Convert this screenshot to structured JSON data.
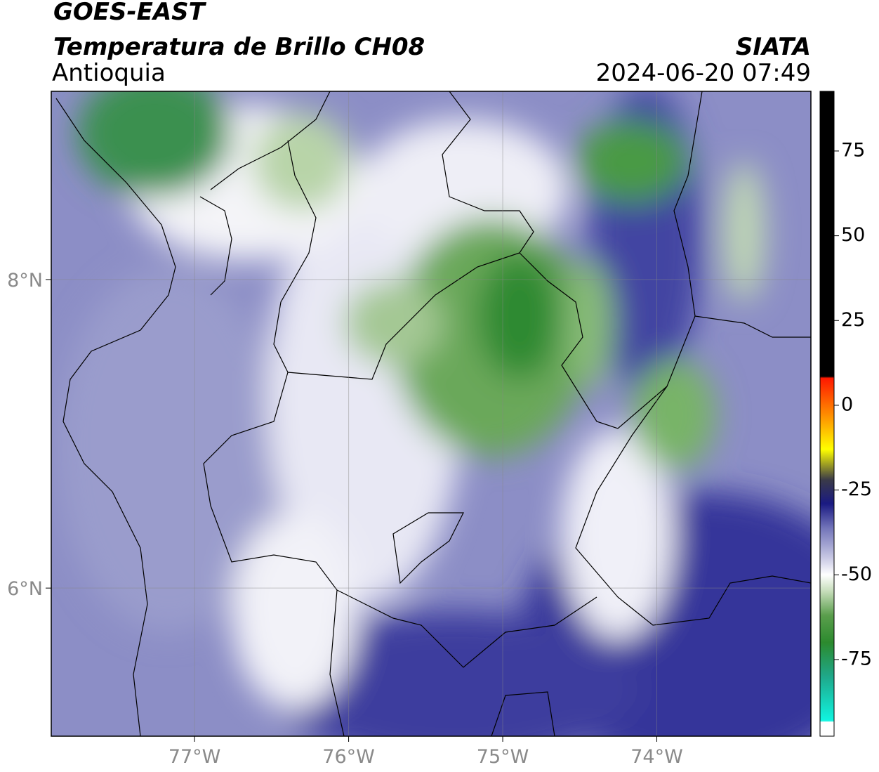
{
  "header": {
    "title": "GOES-EAST",
    "subtitle": "Temperatura de Brillo CH08",
    "region": "Antioquia",
    "source": "SIATA",
    "datetime": "2024-06-20 07:49"
  },
  "map": {
    "xlim": [
      -77.93,
      -73.0
    ],
    "ylim": [
      5.04,
      9.22
    ],
    "xticks": [
      {
        "value": -77,
        "label": "77°W"
      },
      {
        "value": -76,
        "label": "76°W"
      },
      {
        "value": -75,
        "label": "75°W"
      },
      {
        "value": -74,
        "label": "74°W"
      }
    ],
    "yticks": [
      {
        "value": 6,
        "label": "6°N"
      },
      {
        "value": 8,
        "label": "8°N"
      }
    ],
    "grid": true
  },
  "colorbar": {
    "lim": [
      -97.6,
      92.6
    ],
    "ticks": [
      -75,
      -50,
      -25,
      0,
      25,
      50,
      75
    ],
    "colormap": [
      {
        "value": -97.6,
        "color": "#ffffff"
      },
      {
        "value": -93.5,
        "color": "#ffffff"
      },
      {
        "value": -93,
        "color": "#10f4e0"
      },
      {
        "value": -80,
        "color": "#1fa88a"
      },
      {
        "value": -70,
        "color": "#2c8a2e"
      },
      {
        "value": -62,
        "color": "#5a9e4c"
      },
      {
        "value": -55,
        "color": "#c4dcb8"
      },
      {
        "value": -50,
        "color": "#ffffff"
      },
      {
        "value": -45,
        "color": "#c8c8e4"
      },
      {
        "value": -36,
        "color": "#7072b8"
      },
      {
        "value": -29,
        "color": "#1a1a82"
      },
      {
        "value": -22,
        "color": "#3a3a48"
      },
      {
        "value": -13,
        "color": "#ffff00"
      },
      {
        "value": -4,
        "color": "#ff9a00"
      },
      {
        "value": 8,
        "color": "#ff1800"
      },
      {
        "value": 8.5,
        "color": "#000000"
      },
      {
        "value": 92.6,
        "color": "#000000"
      }
    ]
  }
}
